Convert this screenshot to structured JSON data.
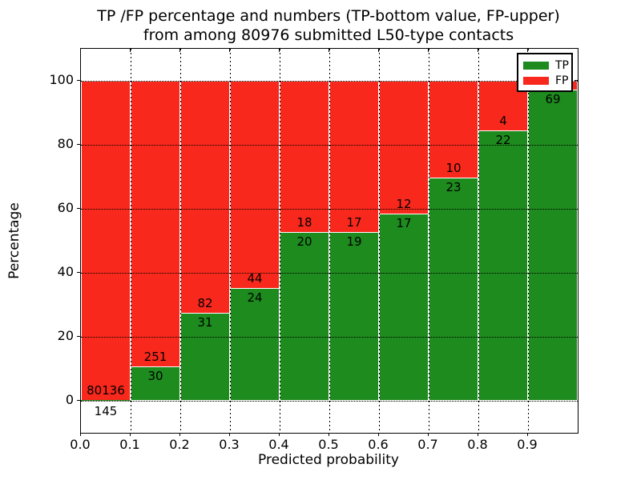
{
  "chart_data": {
    "type": "bar",
    "stacked_percentage": true,
    "title_line1": "TP /FP percentage and numbers (TP-bottom value, FP-upper)",
    "title_line2": "from among 80976 submitted L50-type contacts",
    "xlabel": "Predicted probability",
    "ylabel": "Percentage",
    "xlim": [
      0.0,
      1.0
    ],
    "ylim": [
      -10,
      110
    ],
    "grid": "dotted",
    "xticks": [
      {
        "value": 0.0,
        "label": "0.0"
      },
      {
        "value": 0.1,
        "label": "0.1"
      },
      {
        "value": 0.2,
        "label": "0.2"
      },
      {
        "value": 0.3,
        "label": "0.3"
      },
      {
        "value": 0.4,
        "label": "0.4"
      },
      {
        "value": 0.5,
        "label": "0.5"
      },
      {
        "value": 0.6,
        "label": "0.6"
      },
      {
        "value": 0.7,
        "label": "0.7"
      },
      {
        "value": 0.8,
        "label": "0.8"
      },
      {
        "value": 0.9,
        "label": "0.9"
      }
    ],
    "yticks": [
      {
        "value": 0,
        "label": "0"
      },
      {
        "value": 20,
        "label": "20"
      },
      {
        "value": 40,
        "label": "40"
      },
      {
        "value": 60,
        "label": "60"
      },
      {
        "value": 80,
        "label": "80"
      },
      {
        "value": 100,
        "label": "100"
      }
    ],
    "colors": {
      "tp": "#1e8b1e",
      "fp": "#f8281c",
      "bar_edge": "#ffffff",
      "grid": "#000000"
    },
    "legend": {
      "position": "upper-right",
      "items": [
        {
          "label": "TP",
          "color": "#1e8b1e"
        },
        {
          "label": "FP",
          "color": "#f8281c"
        }
      ]
    },
    "bins": [
      {
        "x_start": 0.0,
        "x_end": 0.1,
        "tp_count": 145,
        "fp_count": 80136,
        "tp_pct": 0.18,
        "tp_label": "145",
        "fp_label": "80136"
      },
      {
        "x_start": 0.1,
        "x_end": 0.2,
        "tp_count": 30,
        "fp_count": 251,
        "tp_pct": 10.68,
        "tp_label": "30",
        "fp_label": "251"
      },
      {
        "x_start": 0.2,
        "x_end": 0.3,
        "tp_count": 31,
        "fp_count": 82,
        "tp_pct": 27.43,
        "tp_label": "31",
        "fp_label": "82"
      },
      {
        "x_start": 0.3,
        "x_end": 0.4,
        "tp_count": 24,
        "fp_count": 44,
        "tp_pct": 35.29,
        "tp_label": "24",
        "fp_label": "44"
      },
      {
        "x_start": 0.4,
        "x_end": 0.5,
        "tp_count": 20,
        "fp_count": 18,
        "tp_pct": 52.63,
        "tp_label": "20",
        "fp_label": "18"
      },
      {
        "x_start": 0.5,
        "x_end": 0.6,
        "tp_count": 19,
        "fp_count": 17,
        "tp_pct": 52.78,
        "tp_label": "19",
        "fp_label": "17"
      },
      {
        "x_start": 0.6,
        "x_end": 0.7,
        "tp_count": 17,
        "fp_count": 12,
        "tp_pct": 58.62,
        "tp_label": "17",
        "fp_label": "12"
      },
      {
        "x_start": 0.7,
        "x_end": 0.8,
        "tp_count": 23,
        "fp_count": 10,
        "tp_pct": 69.7,
        "tp_label": "23",
        "fp_label": "10"
      },
      {
        "x_start": 0.8,
        "x_end": 0.9,
        "tp_count": 22,
        "fp_count": 4,
        "tp_pct": 84.62,
        "tp_label": "22",
        "fp_label": "4"
      },
      {
        "x_start": 0.9,
        "x_end": 1.0,
        "tp_count": 69,
        "fp_count": null,
        "tp_pct": 97.2,
        "tp_label": "69",
        "fp_label": null
      }
    ]
  }
}
